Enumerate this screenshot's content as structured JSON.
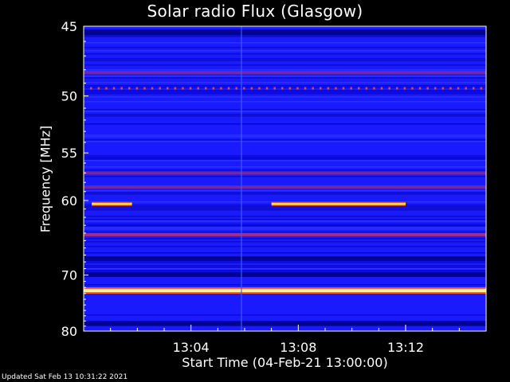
{
  "chart_data": {
    "type": "heatmap",
    "title": "Solar radio Flux (Glasgow)",
    "xlabel": "Start Time (04-Feb-21 13:00:00)",
    "ylabel": "Frequency [MHz]",
    "x_ticks": [
      "13:04",
      "13:08",
      "13:12"
    ],
    "y_ticks": [
      45,
      50,
      55,
      60,
      70,
      80
    ],
    "ylim": [
      45,
      80
    ],
    "y_scale": "reciprocal",
    "xlim_minutes": [
      0,
      15
    ],
    "grid": false,
    "colormap": "blue-red-yellow",
    "features": [
      {
        "kind": "band",
        "freq_mhz": 72.5,
        "level": "max"
      },
      {
        "kind": "band",
        "freq_mhz": 64.2,
        "level": "high"
      },
      {
        "kind": "band",
        "freq_mhz": 57.0,
        "level": "medium"
      },
      {
        "kind": "band",
        "freq_mhz": 58.5,
        "level": "medium"
      },
      {
        "kind": "band",
        "freq_mhz": 48.2,
        "level": "medium"
      },
      {
        "kind": "dotted",
        "freq_mhz": 49.4,
        "level": "high"
      },
      {
        "kind": "burst",
        "freq_mhz": 60.4,
        "minutes": [
          0.3,
          1.8
        ],
        "level": "max"
      },
      {
        "kind": "burst",
        "freq_mhz": 60.4,
        "minutes": [
          7.0,
          12.0
        ],
        "level": "max"
      }
    ]
  },
  "footer": {
    "updated": "Updated Sat Feb 13 10:31:22 2021"
  },
  "colors": {
    "background": "#000000",
    "low": "#1a1aff",
    "band": "#c0306a",
    "hot": "#ffe14a"
  }
}
